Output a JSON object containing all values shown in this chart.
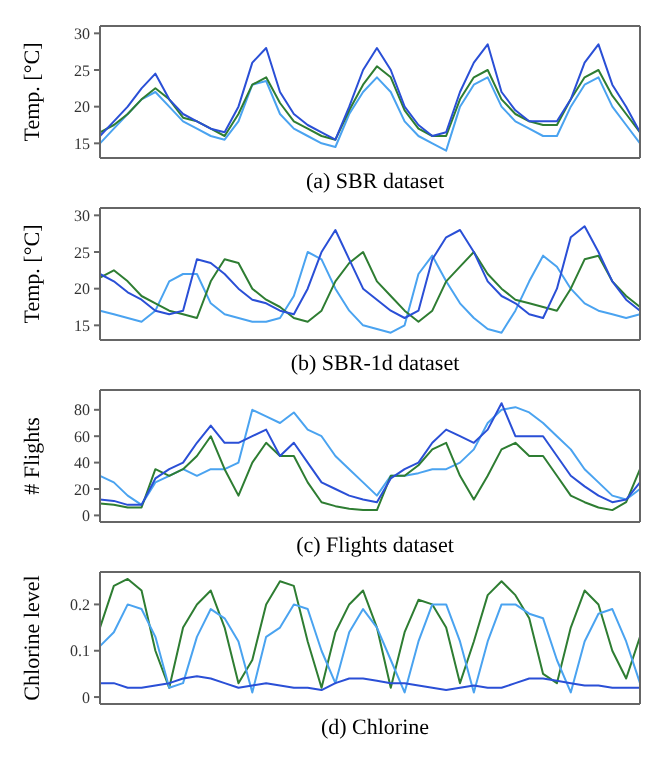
{
  "chart_data": [
    {
      "type": "line",
      "title": "(a) SBR dataset",
      "ylabel": "Temp. [°C]",
      "categories": [
        null,
        null,
        null,
        null,
        null,
        null,
        null,
        null,
        null,
        null,
        null,
        null,
        null,
        null,
        null,
        null,
        null,
        null,
        null,
        null,
        null,
        null,
        null,
        null,
        null,
        null,
        null,
        null,
        null,
        null,
        null,
        null,
        null,
        null,
        null,
        null,
        null,
        null,
        null,
        null
      ],
      "ylim": [
        13,
        31
      ],
      "yticks": [
        15,
        20,
        25,
        30
      ],
      "grid": false,
      "marker": "none",
      "line_style": "solid",
      "tick_labels": "y",
      "series": [
        {
          "color": "#4aa3f0",
          "values": [
            15,
            17,
            19,
            21,
            22,
            20,
            18,
            17,
            16,
            15.5,
            18,
            23,
            23.5,
            19,
            17,
            16,
            15,
            14.5,
            19,
            22,
            24,
            22,
            18,
            16,
            15,
            14,
            20,
            23,
            24,
            20,
            18,
            17,
            16,
            16,
            20,
            23,
            24,
            20,
            17.5,
            15
          ]
        },
        {
          "color": "#2e7d32",
          "values": [
            16.5,
            17.5,
            19,
            21,
            22.5,
            21,
            18.5,
            18,
            17,
            16,
            19,
            23,
            24,
            20.5,
            18,
            17,
            16,
            15.5,
            19.5,
            23,
            25.5,
            24,
            19.5,
            17,
            16,
            16,
            21,
            24,
            25,
            21,
            19,
            18,
            17.5,
            17.5,
            21,
            24,
            25,
            21.5,
            19,
            16.5
          ]
        },
        {
          "color": "#2a4fd6",
          "values": [
            16,
            18,
            20,
            22.5,
            24.5,
            21,
            19,
            18,
            17,
            16.5,
            20,
            26,
            28,
            22,
            19,
            17.5,
            16.5,
            15.5,
            20,
            25,
            28,
            25,
            20,
            17.5,
            16,
            16.5,
            22,
            26,
            28.5,
            22,
            19.5,
            18,
            18,
            18,
            21,
            26,
            28.5,
            23,
            20,
            16.5
          ]
        }
      ]
    },
    {
      "type": "line",
      "title": "(b) SBR-1d dataset",
      "ylabel": "Temp. [°C]",
      "categories": [
        null,
        null,
        null,
        null,
        null,
        null,
        null,
        null,
        null,
        null,
        null,
        null,
        null,
        null,
        null,
        null,
        null,
        null,
        null,
        null,
        null,
        null,
        null,
        null,
        null,
        null,
        null,
        null,
        null,
        null,
        null,
        null,
        null,
        null,
        null,
        null,
        null,
        null,
        null,
        null
      ],
      "ylim": [
        13,
        31
      ],
      "yticks": [
        15,
        20,
        25,
        30
      ],
      "grid": false,
      "marker": "none",
      "line_style": "solid",
      "tick_labels": "y",
      "series": [
        {
          "color": "#4aa3f0",
          "values": [
            17,
            16.5,
            16,
            15.5,
            17,
            21,
            22,
            22,
            18,
            16.5,
            16,
            15.5,
            15.5,
            16,
            19,
            25,
            24,
            20,
            17,
            15,
            14.5,
            14,
            15,
            22,
            24.5,
            21,
            18,
            16,
            14.5,
            14,
            17,
            21,
            24.5,
            23,
            20,
            18,
            17,
            16.5,
            16,
            16.5
          ]
        },
        {
          "color": "#2e7d32",
          "values": [
            21.5,
            22.5,
            21,
            19,
            18,
            17,
            16.5,
            16,
            21,
            24,
            23.5,
            20,
            18.5,
            17.5,
            16,
            15.5,
            17,
            21,
            23.5,
            25,
            21,
            19,
            17,
            15.5,
            17,
            21,
            23,
            25,
            22,
            20,
            18.5,
            18,
            17.5,
            17,
            20,
            24,
            24.5,
            21,
            19,
            17.5
          ]
        },
        {
          "color": "#2a4fd6",
          "values": [
            22,
            21,
            19.5,
            18.5,
            17,
            16.5,
            17,
            24,
            23.5,
            22,
            20,
            18.5,
            18,
            17,
            16.5,
            20,
            25,
            28,
            24,
            20,
            18.5,
            17,
            16,
            17,
            24,
            27,
            28,
            25,
            21,
            19,
            18,
            16.5,
            16,
            20,
            27,
            28.5,
            25,
            21,
            18.5,
            17
          ]
        }
      ]
    },
    {
      "type": "line",
      "title": "(c) Flights dataset",
      "ylabel": "# Flights",
      "categories": [
        null,
        null,
        null,
        null,
        null,
        null,
        null,
        null,
        null,
        null,
        null,
        null,
        null,
        null,
        null,
        null,
        null,
        null,
        null,
        null,
        null,
        null,
        null,
        null,
        null,
        null,
        null,
        null,
        null,
        null,
        null,
        null,
        null,
        null,
        null,
        null,
        null,
        null,
        null,
        null
      ],
      "ylim": [
        -5,
        95
      ],
      "yticks": [
        0,
        20,
        40,
        60,
        80
      ],
      "grid": false,
      "marker": "none",
      "line_style": "solid",
      "tick_labels": "y",
      "series": [
        {
          "color": "#4aa3f0",
          "values": [
            30,
            25,
            15,
            8,
            25,
            30,
            35,
            30,
            35,
            35,
            40,
            80,
            75,
            70,
            78,
            65,
            60,
            45,
            35,
            25,
            15,
            30,
            30,
            32,
            35,
            35,
            40,
            50,
            70,
            80,
            82,
            78,
            70,
            60,
            50,
            35,
            25,
            15,
            12,
            20
          ]
        },
        {
          "color": "#2e7d32",
          "values": [
            9,
            8,
            6,
            6,
            35,
            30,
            35,
            45,
            60,
            35,
            15,
            40,
            55,
            45,
            45,
            25,
            10,
            7,
            5,
            4,
            4,
            30,
            30,
            38,
            50,
            55,
            30,
            12,
            30,
            50,
            55,
            45,
            45,
            30,
            15,
            10,
            6,
            4,
            10,
            35
          ]
        },
        {
          "color": "#2a4fd6",
          "values": [
            12,
            11,
            8,
            8,
            28,
            35,
            40,
            55,
            68,
            55,
            55,
            60,
            65,
            45,
            55,
            40,
            25,
            20,
            15,
            12,
            10,
            28,
            35,
            40,
            55,
            65,
            60,
            55,
            65,
            85,
            60,
            60,
            60,
            45,
            30,
            22,
            15,
            10,
            12,
            25
          ]
        }
      ]
    },
    {
      "type": "line",
      "title": "(d) Chlorine",
      "ylabel": "Chlorine level",
      "categories": [
        null,
        null,
        null,
        null,
        null,
        null,
        null,
        null,
        null,
        null,
        null,
        null,
        null,
        null,
        null,
        null,
        null,
        null,
        null,
        null,
        null,
        null,
        null,
        null,
        null,
        null,
        null,
        null,
        null,
        null,
        null,
        null,
        null,
        null,
        null,
        null,
        null,
        null,
        null,
        null
      ],
      "ylim": [
        -0.015,
        0.27
      ],
      "yticks": [
        0,
        0.1,
        0.2
      ],
      "grid": false,
      "marker": "none",
      "line_style": "solid",
      "tick_labels": "y",
      "series": [
        {
          "color": "#2e7d32",
          "values": [
            0.15,
            0.24,
            0.255,
            0.23,
            0.1,
            0.02,
            0.15,
            0.2,
            0.23,
            0.15,
            0.03,
            0.08,
            0.2,
            0.25,
            0.24,
            0.12,
            0.02,
            0.14,
            0.2,
            0.23,
            0.15,
            0.02,
            0.14,
            0.21,
            0.2,
            0.15,
            0.03,
            0.12,
            0.22,
            0.25,
            0.22,
            0.17,
            0.05,
            0.03,
            0.15,
            0.23,
            0.2,
            0.1,
            0.04,
            0.13
          ]
        },
        {
          "color": "#4aa3f0",
          "values": [
            0.11,
            0.14,
            0.2,
            0.19,
            0.13,
            0.02,
            0.03,
            0.13,
            0.19,
            0.17,
            0.12,
            0.01,
            0.13,
            0.15,
            0.2,
            0.19,
            0.1,
            0.03,
            0.14,
            0.19,
            0.15,
            0.08,
            0.01,
            0.12,
            0.2,
            0.2,
            0.12,
            0.01,
            0.12,
            0.2,
            0.2,
            0.18,
            0.17,
            0.08,
            0.01,
            0.12,
            0.18,
            0.19,
            0.12,
            0.03
          ]
        },
        {
          "color": "#2a4fd6",
          "values": [
            0.03,
            0.03,
            0.02,
            0.02,
            0.025,
            0.03,
            0.04,
            0.045,
            0.04,
            0.03,
            0.02,
            0.025,
            0.03,
            0.025,
            0.02,
            0.02,
            0.015,
            0.03,
            0.04,
            0.04,
            0.035,
            0.03,
            0.03,
            0.025,
            0.02,
            0.015,
            0.02,
            0.025,
            0.02,
            0.02,
            0.03,
            0.04,
            0.04,
            0.035,
            0.03,
            0.025,
            0.025,
            0.02,
            0.02,
            0.02
          ]
        }
      ]
    }
  ]
}
